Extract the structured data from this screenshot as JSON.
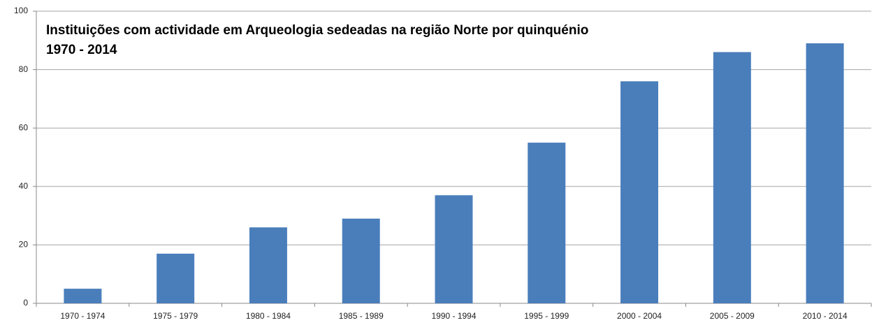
{
  "chart_data": {
    "type": "bar",
    "title": "Instituições com actividade em Arqueologia sedeadas na região Norte por quinquénio",
    "subtitle": "1970 - 2014",
    "categories": [
      "1970 - 1974",
      "1975 - 1979",
      "1980 - 1984",
      "1985 - 1989",
      "1990 - 1994",
      "1995 - 1999",
      "2000 - 2004",
      "2005 - 2009",
      "2010 - 2014"
    ],
    "values": [
      5,
      17,
      26,
      29,
      37,
      55,
      76,
      86,
      89
    ],
    "color": "#4a7ebb",
    "ylim": [
      0,
      100
    ],
    "yticks": [
      0,
      20,
      40,
      60,
      80,
      100
    ],
    "grid": true
  }
}
